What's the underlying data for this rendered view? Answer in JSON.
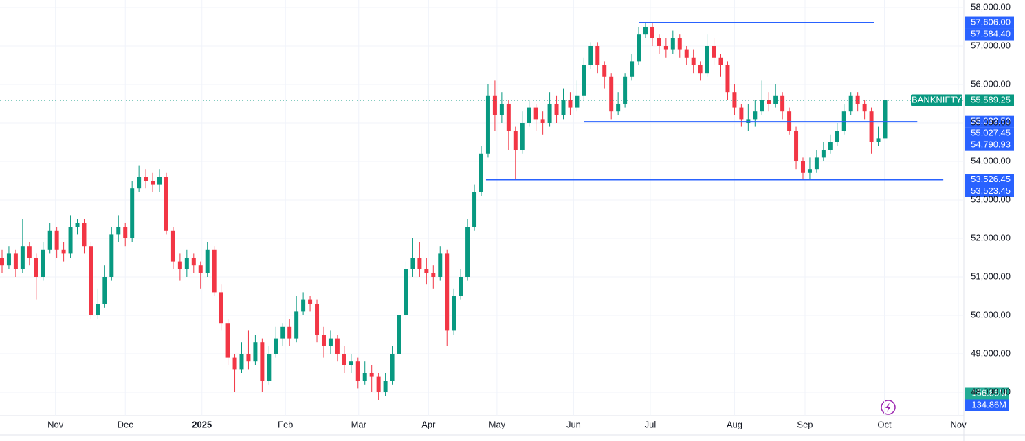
{
  "chart_data": {
    "type": "candlestick",
    "symbol": "BANKNIFTY",
    "up_color": "#089981",
    "down_color": "#f23645",
    "grid": true,
    "xlim": [
      -0.3,
      140.5
    ],
    "ylim": [
      47393,
      58196
    ],
    "yticks": [
      {
        "value": 48000,
        "label": "48,000.00"
      },
      {
        "value": 49000,
        "label": "49,000.00"
      },
      {
        "value": 50000,
        "label": "50,000.00"
      },
      {
        "value": 51000,
        "label": "51,000.00"
      },
      {
        "value": 52000,
        "label": "52,000.00"
      },
      {
        "value": 53000,
        "label": "53,000.00"
      },
      {
        "value": 54000,
        "label": "54,000.00"
      },
      {
        "value": 55000,
        "label": "55,000.00"
      },
      {
        "value": 56000,
        "label": "56,000.00"
      },
      {
        "value": 57000,
        "label": "57,000.00"
      },
      {
        "value": 58000,
        "label": "58,000.00"
      }
    ],
    "xticks": [
      {
        "value": 7.8,
        "label": "Nov"
      },
      {
        "value": 18,
        "label": "Dec"
      },
      {
        "value": 29.2,
        "label": "2025"
      },
      {
        "value": 41.4,
        "label": "Feb"
      },
      {
        "value": 52.1,
        "label": "Mar"
      },
      {
        "value": 62.3,
        "label": "Apr"
      },
      {
        "value": 72.3,
        "label": "May"
      },
      {
        "value": 83.5,
        "label": "Jun"
      },
      {
        "value": 94.7,
        "label": "Jul"
      },
      {
        "value": 107,
        "label": "Aug"
      },
      {
        "value": 117.3,
        "label": "Sep"
      },
      {
        "value": 128.9,
        "label": "Oct"
      },
      {
        "value": 139.7,
        "label": "Nov"
      }
    ],
    "open": [
      51500,
      51300,
      51600,
      51200,
      51800,
      51500,
      51000,
      51700,
      52200,
      51700,
      51600,
      52300,
      52400,
      51800,
      50000,
      50300,
      51000,
      52100,
      52300,
      52000,
      53300,
      53600,
      53500,
      53400,
      53600,
      52200,
      51400,
      51200,
      51500,
      51300,
      51100,
      51700,
      50600,
      49800,
      48900,
      48600,
      49000,
      48800,
      49300,
      48300,
      49000,
      49400,
      49700,
      49400,
      50100,
      50400,
      50300,
      49500,
      49200,
      49400,
      49000,
      48700,
      48800,
      48300,
      48500,
      48400,
      48000,
      48300,
      49000,
      50000,
      51200,
      51500,
      51200,
      51100,
      51000,
      51600,
      49600,
      50500,
      51000,
      52300,
      53200,
      54200,
      55700,
      55200,
      55500,
      54800,
      54300,
      55000,
      55400,
      55100,
      55000,
      55500,
      55200,
      55600,
      55400,
      55700,
      56500,
      57000,
      56500,
      56200,
      55300,
      55500,
      56200,
      56600,
      57300,
      57500,
      57200,
      57000,
      56900,
      57200,
      56900,
      56700,
      56500,
      56300,
      57000,
      56700,
      56500,
      55800,
      55400,
      55000,
      55100,
      55300,
      55600,
      55500,
      55700,
      55300,
      54800,
      54000,
      53700,
      53800,
      54100,
      54300,
      54500,
      54800,
      55300,
      55700,
      55500,
      55300,
      54500,
      54600
    ],
    "high": [
      51700,
      51800,
      51700,
      52500,
      51900,
      51600,
      51900,
      52400,
      52300,
      51900,
      52600,
      52500,
      52500,
      51900,
      50700,
      51300,
      52300,
      52600,
      52400,
      53500,
      53900,
      53800,
      53700,
      53800,
      53700,
      52300,
      51600,
      51700,
      51600,
      51400,
      51900,
      51800,
      50800,
      49900,
      49000,
      49300,
      49600,
      49500,
      49400,
      49200,
      49700,
      49800,
      49900,
      50500,
      50600,
      50500,
      50400,
      49700,
      49600,
      49500,
      49200,
      49000,
      48900,
      48800,
      48700,
      48500,
      48500,
      49200,
      50200,
      51400,
      52000,
      51900,
      51500,
      51300,
      51800,
      51700,
      50700,
      51200,
      52500,
      53400,
      54400,
      56000,
      56100,
      55800,
      55600,
      54900,
      55300,
      55600,
      55500,
      55300,
      55800,
      55700,
      55900,
      55800,
      56100,
      56700,
      57100,
      57100,
      56600,
      56300,
      55800,
      56300,
      56800,
      57500,
      57606,
      57600,
      57300,
      57200,
      57400,
      57300,
      57000,
      56900,
      56600,
      57300,
      57200,
      56800,
      56600,
      56000,
      55500,
      55500,
      55600,
      56100,
      55800,
      56000,
      55800,
      55400,
      54900,
      54100,
      54100,
      54300,
      54500,
      54700,
      55000,
      55500,
      55800,
      55800,
      55600,
      55400,
      54900,
      55650
    ],
    "low": [
      51100,
      51200,
      51000,
      51100,
      51300,
      50400,
      50900,
      51600,
      51500,
      51400,
      51500,
      52100,
      51600,
      49900,
      49900,
      50200,
      50900,
      51900,
      51800,
      51900,
      53200,
      53300,
      53200,
      53200,
      52100,
      51200,
      50900,
      51000,
      51100,
      50700,
      51000,
      50500,
      49600,
      48700,
      48000,
      48500,
      48600,
      48700,
      48000,
      48200,
      48900,
      49200,
      49200,
      49300,
      50000,
      50100,
      49300,
      48900,
      49000,
      48800,
      48500,
      48500,
      48100,
      48200,
      48000,
      47800,
      47900,
      48200,
      48900,
      49900,
      51000,
      51000,
      50800,
      50700,
      50900,
      49200,
      49500,
      50400,
      50900,
      52200,
      53100,
      54100,
      54800,
      55000,
      54300,
      53530,
      54200,
      54900,
      54800,
      54700,
      54900,
      55000,
      55100,
      55200,
      55300,
      55600,
      56400,
      56300,
      55900,
      55100,
      55200,
      55400,
      56100,
      56500,
      57200,
      57000,
      56800,
      56700,
      56800,
      56700,
      56500,
      56300,
      56100,
      56200,
      56500,
      56200,
      55600,
      55200,
      54900,
      54800,
      54900,
      55200,
      55300,
      55400,
      55100,
      54700,
      53800,
      53550,
      53550,
      53700,
      54000,
      54200,
      54400,
      54700,
      55200,
      55300,
      55100,
      54200,
      54400,
      54550
    ],
    "close": [
      51300,
      51600,
      51200,
      51800,
      51500,
      51000,
      51700,
      52200,
      51700,
      51600,
      52300,
      52400,
      51800,
      50000,
      50300,
      51000,
      52100,
      52300,
      52000,
      53300,
      53600,
      53500,
      53400,
      53600,
      52200,
      51400,
      51200,
      51500,
      51300,
      51100,
      51700,
      50600,
      49800,
      48900,
      48600,
      49000,
      48800,
      49300,
      48300,
      49000,
      49400,
      49700,
      49400,
      50100,
      50400,
      50300,
      49500,
      49200,
      49400,
      49000,
      48700,
      48800,
      48300,
      48500,
      48400,
      48000,
      48300,
      49000,
      50000,
      51200,
      51500,
      51200,
      51100,
      51000,
      51600,
      49600,
      50500,
      51000,
      52300,
      53200,
      54200,
      55700,
      55200,
      55500,
      54800,
      54300,
      55000,
      55400,
      55100,
      55000,
      55500,
      55200,
      55600,
      55400,
      55700,
      56500,
      57000,
      56500,
      56200,
      55300,
      55500,
      56200,
      56600,
      57300,
      57500,
      57200,
      57000,
      56900,
      57200,
      56900,
      56700,
      56500,
      56300,
      57000,
      56700,
      56500,
      55800,
      55400,
      55100,
      55100,
      55300,
      55600,
      55500,
      55700,
      55300,
      54800,
      54000,
      53700,
      53800,
      54100,
      54300,
      54500,
      54800,
      55300,
      55700,
      55500,
      55300,
      54500,
      54600,
      55589.25
    ],
    "last_price": {
      "value": 55589.25,
      "label": "55,589.25",
      "color": "#089981"
    },
    "levels": [
      {
        "value": 57606,
        "x": [
          93.1,
          127.4
        ],
        "color": "#2962ff"
      },
      {
        "value": 55032.5,
        "x": [
          85.0,
          133.7
        ],
        "color": "#2962ff"
      },
      {
        "value": 53526.45,
        "x": [
          70.7,
          137.5
        ],
        "color": "#2962ff"
      }
    ],
    "price_tags": [
      {
        "value": 57606,
        "label": "57,606.00"
      },
      {
        "value": 57584.4,
        "label": "57,584.40"
      },
      {
        "value": 55032.5,
        "label": "55,032.50"
      },
      {
        "value": 55027.45,
        "label": "55,027.45"
      },
      {
        "value": 54790.93,
        "label": "54,790.93"
      },
      {
        "value": 53526.45,
        "label": "53,526.45"
      },
      {
        "value": 53523.45,
        "label": "53,523.45"
      }
    ],
    "tag_color": "#2962ff",
    "volume_tags": [
      {
        "label": "156.86M",
        "color": "#22ab94"
      },
      {
        "label": "134.86M",
        "color": "#2962ff"
      }
    ]
  }
}
